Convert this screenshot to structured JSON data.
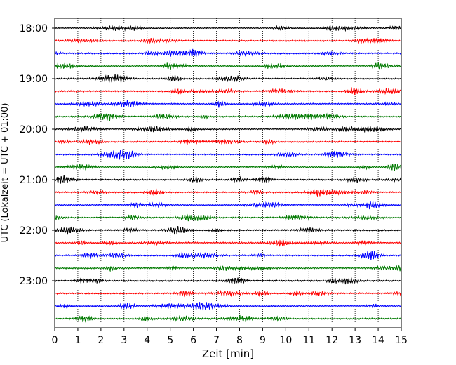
{
  "chart_data": {
    "type": "line",
    "xlabel": "Zeit  [min]",
    "ylabel": "UTC (Lokalzeit = UTC + 01:00)",
    "xlim": [
      0,
      15
    ],
    "x_ticks": [
      "0",
      "1",
      "2",
      "3",
      "4",
      "5",
      "6",
      "7",
      "8",
      "9",
      "10",
      "11",
      "12",
      "13",
      "14",
      "15"
    ],
    "y_ticks": [
      "18:00",
      "19:00",
      "20:00",
      "21:00",
      "22:00",
      "23:00"
    ],
    "grid": "vertical dotted",
    "trace_interval_min": 15,
    "trace_colors": [
      "#000000",
      "#ff0000",
      "#0000ff",
      "#007a00"
    ],
    "traces": [
      {
        "start": "18:00"
      },
      {
        "start": "18:15"
      },
      {
        "start": "18:30"
      },
      {
        "start": "18:45"
      },
      {
        "start": "19:00"
      },
      {
        "start": "19:15"
      },
      {
        "start": "19:30"
      },
      {
        "start": "19:45"
      },
      {
        "start": "20:00"
      },
      {
        "start": "20:15"
      },
      {
        "start": "20:30"
      },
      {
        "start": "20:45"
      },
      {
        "start": "21:00"
      },
      {
        "start": "21:15"
      },
      {
        "start": "21:30"
      },
      {
        "start": "21:45"
      },
      {
        "start": "22:00"
      },
      {
        "start": "22:15"
      },
      {
        "start": "22:30"
      },
      {
        "start": "22:45"
      },
      {
        "start": "23:00"
      },
      {
        "start": "23:15"
      },
      {
        "start": "23:30"
      },
      {
        "start": "23:45"
      }
    ]
  }
}
